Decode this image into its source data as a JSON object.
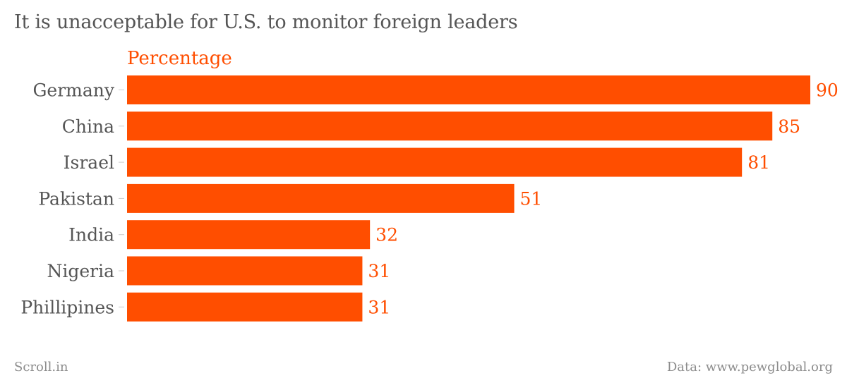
{
  "title": "It is unacceptable for U.S. to monitor foreign leaders",
  "footer": {
    "brand": "Scroll.in",
    "source": "Data: www.pewglobal.org"
  },
  "colors": {
    "bar": "#ff4e00",
    "label": "#555555",
    "tick": "#cccccc"
  },
  "chart_data": {
    "type": "bar",
    "orientation": "horizontal",
    "title": "It is unacceptable for U.S. to monitor foreign leaders",
    "series": [
      {
        "name": "Percentage",
        "values": [
          90,
          85,
          81,
          51,
          32,
          31,
          31
        ]
      }
    ],
    "categories": [
      "Germany",
      "China",
      "Israel",
      "Pakistan",
      "India",
      "Nigeria",
      "Phillipines"
    ],
    "value_labels": [
      "90",
      "85",
      "81",
      "51",
      "32",
      "31",
      "31"
    ],
    "xlim": [
      0,
      90
    ],
    "grid": false,
    "legend": "top-left"
  }
}
